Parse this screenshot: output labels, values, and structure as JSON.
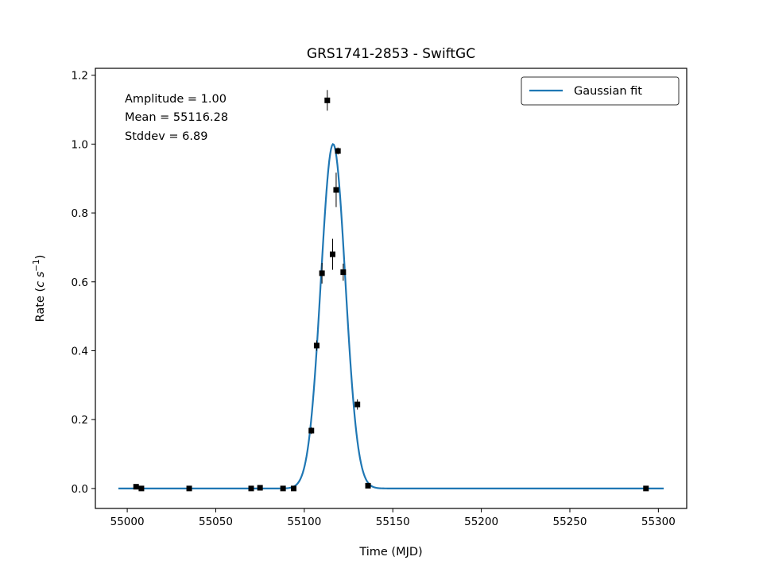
{
  "chart_data": {
    "type": "scatter",
    "title": "GRS1741-2853 - SwiftGC",
    "xlabel": "Time (MJD)",
    "ylabel_prefix": "Rate (",
    "ylabel_italic": "c s",
    "ylabel_sup": "−1",
    "ylabel_suffix": ")",
    "xlim": [
      54982,
      55316
    ],
    "ylim": [
      -0.058,
      1.22
    ],
    "xticks": [
      55000,
      55050,
      55100,
      55150,
      55200,
      55250,
      55300
    ],
    "xtick_labels": [
      "55000",
      "55050",
      "55100",
      "55150",
      "55200",
      "55250",
      "55300"
    ],
    "yticks": [
      0.0,
      0.2,
      0.4,
      0.6,
      0.8,
      1.0,
      1.2
    ],
    "ytick_labels": [
      "0.0",
      "0.2",
      "0.4",
      "0.6",
      "0.8",
      "1.0",
      "1.2"
    ],
    "grid": false,
    "legend_position": "top-right",
    "series": [
      {
        "name": "Gaussian fit",
        "kind": "line",
        "color": "#1f77b4",
        "function": "gaussian",
        "amplitude": 1.0,
        "mean": 55116.28,
        "stddev": 6.89,
        "x_range": [
          54995,
          55303
        ]
      },
      {
        "kind": "errorbar-points",
        "color": "#000000",
        "points": [
          {
            "x": 55005,
            "y": 0.005,
            "err": 0.004
          },
          {
            "x": 55008,
            "y": 0.0,
            "err": 0.004
          },
          {
            "x": 55035,
            "y": 0.0,
            "err": 0.004
          },
          {
            "x": 55070,
            "y": 0.0,
            "err": 0.004
          },
          {
            "x": 55075,
            "y": 0.002,
            "err": 0.004
          },
          {
            "x": 55088,
            "y": 0.0,
            "err": 0.004
          },
          {
            "x": 55094,
            "y": 0.0,
            "err": 0.004
          },
          {
            "x": 55104,
            "y": 0.168,
            "err": 0.01
          },
          {
            "x": 55107,
            "y": 0.415,
            "err": 0.015
          },
          {
            "x": 55110,
            "y": 0.625,
            "err": 0.03
          },
          {
            "x": 55113,
            "y": 1.127,
            "err": 0.03
          },
          {
            "x": 55116,
            "y": 0.68,
            "err": 0.045
          },
          {
            "x": 55118,
            "y": 0.867,
            "err": 0.05
          },
          {
            "x": 55119,
            "y": 0.98,
            "err": 0.01
          },
          {
            "x": 55122,
            "y": 0.628,
            "err": 0.025
          },
          {
            "x": 55130,
            "y": 0.244,
            "err": 0.015
          },
          {
            "x": 55136,
            "y": 0.008,
            "err": 0.004
          },
          {
            "x": 55293,
            "y": 0.0,
            "err": 0.004
          }
        ]
      }
    ],
    "annotations": [
      "Amplitude = 1.00",
      "Mean = 55116.28",
      "Stddev = 6.89"
    ]
  }
}
